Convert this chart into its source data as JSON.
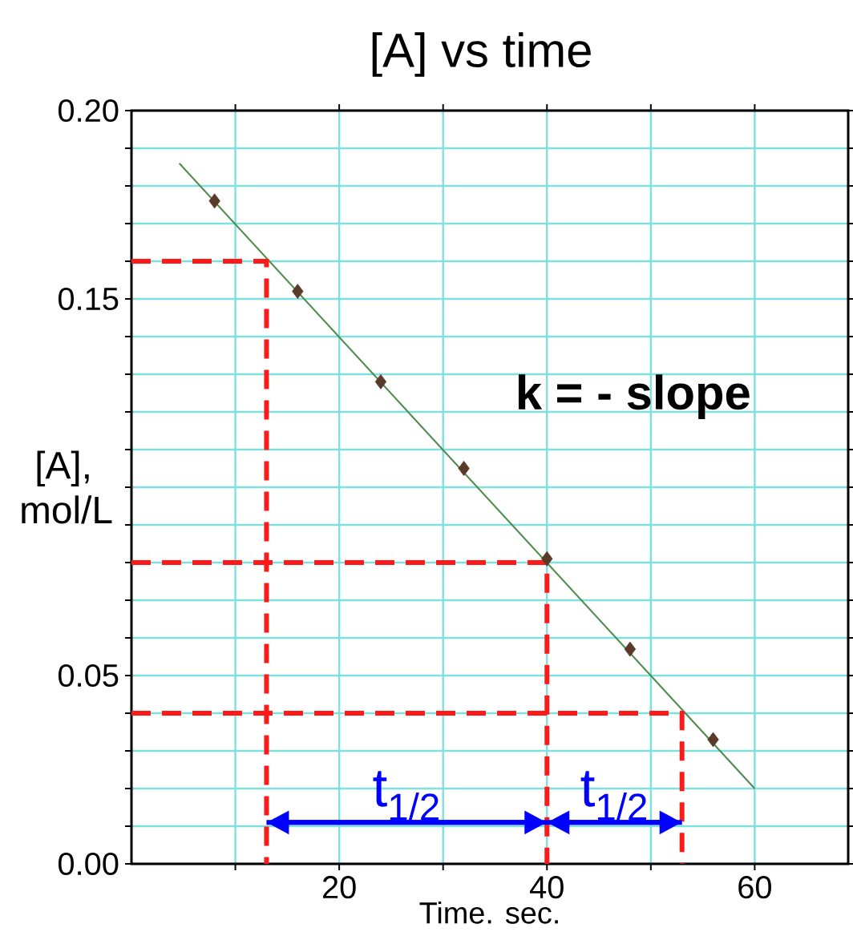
{
  "chart_data": {
    "type": "scatter",
    "title": "[A]  vs time",
    "xlabel": "Time. sec.",
    "ylabel": "[A], mol/L",
    "xlim": [
      0,
      69
    ],
    "ylim": [
      0,
      0.2
    ],
    "xticks": [
      {
        "value": 10,
        "label": null
      },
      20,
      {
        "value": 30,
        "label": null
      },
      40,
      {
        "value": 50,
        "label": null
      },
      60
    ],
    "yticks": [
      {
        "value": 0,
        "label": "0.00"
      },
      {
        "value": 0.01,
        "label": null
      },
      {
        "value": 0.02,
        "label": null
      },
      {
        "value": 0.03,
        "label": null
      },
      {
        "value": 0.04,
        "label": null
      },
      {
        "value": 0.05,
        "label": "0.05"
      },
      {
        "value": 0.06,
        "label": null
      },
      {
        "value": 0.07,
        "label": null
      },
      {
        "value": 0.08,
        "label": null
      },
      {
        "value": 0.09,
        "label": null
      },
      {
        "value": 0.1,
        "label": null
      },
      {
        "value": 0.11,
        "label": null
      },
      {
        "value": 0.12,
        "label": null
      },
      {
        "value": 0.13,
        "label": null
      },
      {
        "value": 0.14,
        "label": null
      },
      {
        "value": 0.15,
        "label": "0.15"
      },
      {
        "value": 0.16,
        "label": null
      },
      {
        "value": 0.17,
        "label": null
      },
      {
        "value": 0.18,
        "label": null
      },
      {
        "value": 0.19,
        "label": null
      },
      {
        "value": 0.2,
        "label": "0.20"
      }
    ],
    "grid": true,
    "series": [
      {
        "color": "#5a3a28",
        "marker": "diamond",
        "x": [
          8,
          16,
          24,
          32,
          40,
          48,
          56
        ],
        "values": [
          0.176,
          0.152,
          0.128,
          0.105,
          0.081,
          0.057,
          0.033
        ]
      },
      {
        "type": "line",
        "color": "#4a8a4a",
        "x": [
          4.6,
          60
        ],
        "values": [
          0.186,
          0.02
        ]
      },
      {
        "type": "line",
        "color": "#ff1a1a",
        "line_style": "dashed",
        "x": [
          0,
          13,
          13
        ],
        "values": [
          0.16,
          0.16,
          0
        ]
      },
      {
        "type": "line",
        "color": "#ff1a1a",
        "line_style": "dashed",
        "x": [
          0,
          40,
          40
        ],
        "values": [
          0.08,
          0.08,
          0
        ]
      },
      {
        "type": "line",
        "color": "#ff1a1a",
        "line_style": "dashed",
        "x": [
          0,
          53,
          53
        ],
        "values": [
          0.04,
          0.04,
          0
        ]
      },
      {
        "type": "line",
        "color": "#0000ff",
        "x": [
          13,
          40,
          53
        ],
        "values": [
          0.011,
          0.011,
          0.011
        ]
      }
    ],
    "annotations": [
      "k = - slope",
      {
        "text": "t$_{1/2}$",
        "x": 26.5,
        "y": 0.011
      },
      {
        "text": "t$_{1/2}$",
        "x": 46.5,
        "y": 0.011
      }
    ]
  }
}
